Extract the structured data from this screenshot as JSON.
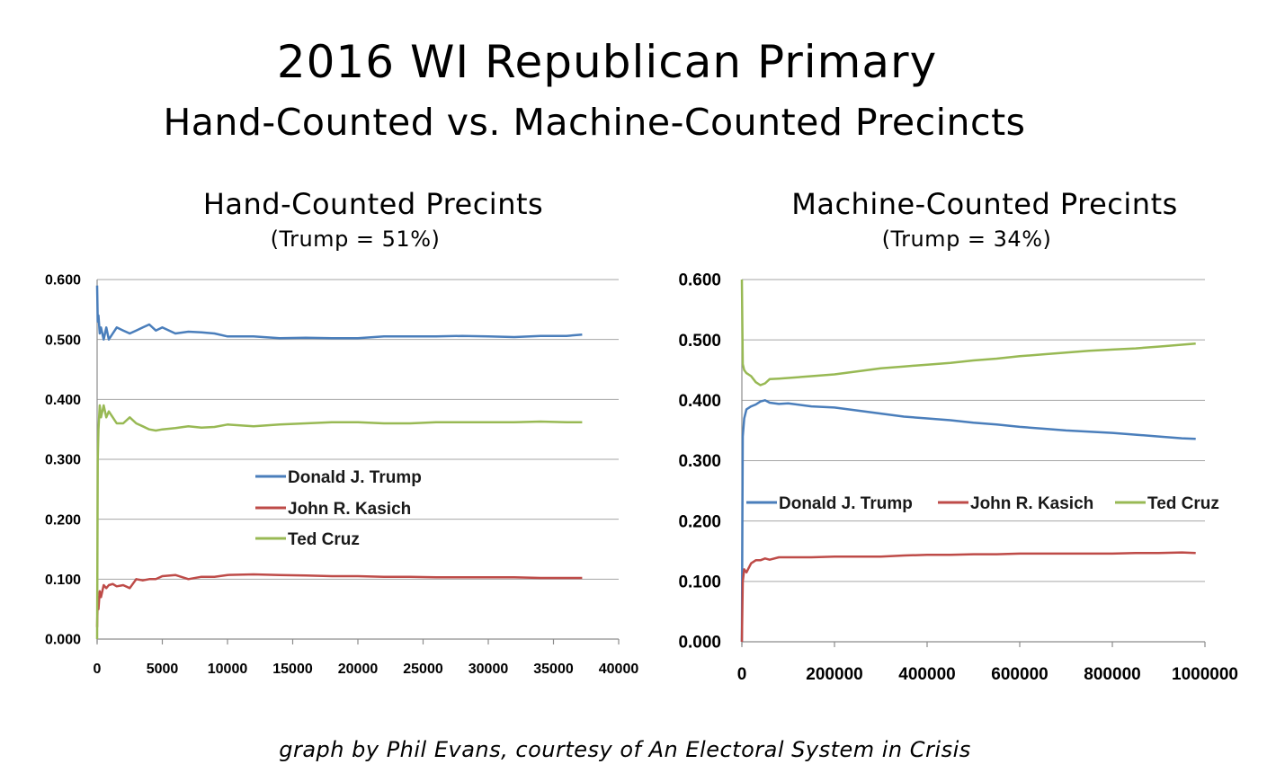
{
  "title": "2016 WI Republican Primary",
  "subtitle": "Hand-Counted vs. Machine-Counted Precincts",
  "credit": "graph by Phil Evans, courtesy of An Electoral System in Crisis",
  "colors": {
    "trump": "#4a7ebb",
    "kasich": "#be4b48",
    "cruz": "#98b954",
    "grid": "#a6a6a6"
  },
  "chart_data": [
    {
      "type": "line",
      "title": "Hand-Counted Precints",
      "note": "(Trump = 51%)",
      "xlabel": "",
      "ylabel": "",
      "xlim": [
        0,
        40000
      ],
      "ylim": [
        0,
        0.6
      ],
      "grid": true,
      "legend": "center",
      "xticks": [
        "0",
        "5000",
        "10000",
        "15000",
        "20000",
        "25000",
        "30000",
        "35000",
        "40000"
      ],
      "yticks": [
        "0.000",
        "0.100",
        "0.200",
        "0.300",
        "0.400",
        "0.500",
        "0.600"
      ],
      "series": [
        {
          "name": "Donald J. Trump",
          "color": "#4a7ebb",
          "x": [
            0,
            50,
            100,
            200,
            300,
            500,
            700,
            900,
            1200,
            1500,
            2000,
            2500,
            3000,
            3500,
            4000,
            4500,
            5000,
            6000,
            7000,
            8000,
            9000,
            10000,
            12000,
            14000,
            16000,
            18000,
            20000,
            22000,
            24000,
            26000,
            28000,
            30000,
            32000,
            34000,
            36000,
            37200
          ],
          "y": [
            0.59,
            0.53,
            0.54,
            0.51,
            0.52,
            0.5,
            0.52,
            0.5,
            0.51,
            0.52,
            0.515,
            0.51,
            0.515,
            0.52,
            0.525,
            0.515,
            0.52,
            0.51,
            0.513,
            0.512,
            0.51,
            0.505,
            0.505,
            0.502,
            0.503,
            0.502,
            0.502,
            0.505,
            0.505,
            0.505,
            0.506,
            0.505,
            0.504,
            0.506,
            0.506,
            0.508
          ]
        },
        {
          "name": "John R. Kasich",
          "color": "#be4b48",
          "x": [
            0,
            50,
            100,
            200,
            300,
            500,
            700,
            900,
            1200,
            1500,
            2000,
            2500,
            3000,
            3500,
            4000,
            4500,
            5000,
            6000,
            7000,
            8000,
            9000,
            10000,
            12000,
            14000,
            16000,
            18000,
            20000,
            22000,
            24000,
            26000,
            28000,
            30000,
            32000,
            34000,
            36000,
            37200
          ],
          "y": [
            0.02,
            0.07,
            0.05,
            0.08,
            0.07,
            0.09,
            0.085,
            0.09,
            0.092,
            0.088,
            0.09,
            0.085,
            0.1,
            0.098,
            0.1,
            0.1,
            0.105,
            0.107,
            0.1,
            0.104,
            0.104,
            0.107,
            0.108,
            0.107,
            0.106,
            0.105,
            0.105,
            0.104,
            0.104,
            0.103,
            0.103,
            0.103,
            0.103,
            0.102,
            0.102,
            0.102
          ]
        },
        {
          "name": "Ted Cruz",
          "color": "#98b954",
          "x": [
            0,
            50,
            100,
            200,
            300,
            500,
            700,
            900,
            1200,
            1500,
            2000,
            2500,
            3000,
            3500,
            4000,
            4500,
            5000,
            6000,
            7000,
            8000,
            9000,
            10000,
            12000,
            14000,
            16000,
            18000,
            20000,
            22000,
            24000,
            26000,
            28000,
            30000,
            32000,
            34000,
            36000,
            37200
          ],
          "y": [
            0.0,
            0.3,
            0.35,
            0.39,
            0.37,
            0.39,
            0.37,
            0.38,
            0.37,
            0.36,
            0.36,
            0.37,
            0.36,
            0.355,
            0.35,
            0.348,
            0.35,
            0.352,
            0.355,
            0.353,
            0.354,
            0.358,
            0.355,
            0.358,
            0.36,
            0.362,
            0.362,
            0.36,
            0.36,
            0.362,
            0.362,
            0.362,
            0.362,
            0.363,
            0.362,
            0.362
          ]
        }
      ]
    },
    {
      "type": "line",
      "title": "Machine-Counted Precints",
      "note": "(Trump = 34%)",
      "xlabel": "",
      "ylabel": "",
      "xlim": [
        0,
        1000000
      ],
      "ylim": [
        0,
        0.6
      ],
      "grid": true,
      "legend": "center",
      "xticks": [
        "0",
        "200000",
        "400000",
        "600000",
        "800000",
        "1000000"
      ],
      "yticks": [
        "0.000",
        "0.100",
        "0.200",
        "0.300",
        "0.400",
        "0.500",
        "0.600"
      ],
      "series": [
        {
          "name": "Donald J. Trump",
          "color": "#4a7ebb",
          "x": [
            0,
            2000,
            5000,
            10000,
            20000,
            30000,
            40000,
            50000,
            60000,
            80000,
            100000,
            150000,
            200000,
            250000,
            300000,
            350000,
            400000,
            450000,
            500000,
            550000,
            600000,
            650000,
            700000,
            750000,
            800000,
            850000,
            900000,
            950000,
            980000
          ],
          "y": [
            0.0,
            0.34,
            0.37,
            0.385,
            0.39,
            0.393,
            0.398,
            0.4,
            0.396,
            0.394,
            0.395,
            0.39,
            0.388,
            0.383,
            0.378,
            0.373,
            0.37,
            0.367,
            0.363,
            0.36,
            0.356,
            0.353,
            0.35,
            0.348,
            0.346,
            0.343,
            0.34,
            0.337,
            0.336
          ]
        },
        {
          "name": "John R. Kasich",
          "color": "#be4b48",
          "x": [
            0,
            2000,
            5000,
            10000,
            20000,
            30000,
            40000,
            50000,
            60000,
            80000,
            100000,
            150000,
            200000,
            250000,
            300000,
            350000,
            400000,
            450000,
            500000,
            550000,
            600000,
            650000,
            700000,
            750000,
            800000,
            850000,
            900000,
            950000,
            980000
          ],
          "y": [
            0.0,
            0.1,
            0.12,
            0.115,
            0.13,
            0.135,
            0.135,
            0.138,
            0.136,
            0.14,
            0.14,
            0.14,
            0.141,
            0.141,
            0.141,
            0.143,
            0.144,
            0.144,
            0.145,
            0.145,
            0.146,
            0.146,
            0.146,
            0.146,
            0.146,
            0.147,
            0.147,
            0.148,
            0.147
          ]
        },
        {
          "name": "Ted Cruz",
          "color": "#98b954",
          "x": [
            0,
            2000,
            5000,
            10000,
            20000,
            30000,
            40000,
            50000,
            60000,
            80000,
            100000,
            150000,
            200000,
            250000,
            300000,
            350000,
            400000,
            450000,
            500000,
            550000,
            600000,
            650000,
            700000,
            750000,
            800000,
            850000,
            900000,
            950000,
            980000
          ],
          "y": [
            0.6,
            0.46,
            0.45,
            0.445,
            0.44,
            0.43,
            0.425,
            0.428,
            0.435,
            0.436,
            0.437,
            0.44,
            0.443,
            0.448,
            0.453,
            0.456,
            0.459,
            0.462,
            0.466,
            0.469,
            0.473,
            0.476,
            0.479,
            0.482,
            0.484,
            0.486,
            0.489,
            0.492,
            0.494
          ]
        }
      ]
    }
  ]
}
